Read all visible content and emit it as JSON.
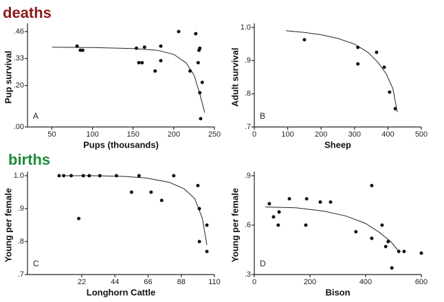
{
  "sections": [
    "deaths",
    "births"
  ],
  "chart_data": [
    {
      "type": "scatter",
      "panel_label": "A",
      "x_label": "Pups (thousands)",
      "y_label": "Pup survival",
      "x": [
        81,
        85,
        88,
        154,
        157,
        161,
        164,
        177,
        184,
        184,
        206,
        220,
        227,
        230,
        231,
        232,
        232,
        235,
        233
      ],
      "values": [
        0.39,
        0.37,
        0.37,
        0.38,
        0.31,
        0.31,
        0.385,
        0.27,
        0.32,
        0.39,
        0.46,
        0.27,
        0.45,
        0.31,
        0.37,
        0.38,
        0.165,
        0.215,
        0.04
      ],
      "curve": {
        "x": [
          50,
          100,
          150,
          180,
          200,
          215,
          225,
          232,
          238
        ],
        "values": [
          0.385,
          0.383,
          0.378,
          0.37,
          0.35,
          0.31,
          0.25,
          0.16,
          0.07
        ]
      },
      "xlim": [
        20,
        250
      ],
      "xticks": [
        50,
        100,
        150,
        200,
        250
      ],
      "ylim": [
        0,
        0.48
      ],
      "yticks": [
        {
          "value": 0,
          "label": ".00"
        },
        {
          "value": 0.2,
          "label": ".20"
        },
        {
          "value": 0.33,
          "label": ".33"
        },
        {
          "value": 0.46,
          "label": ".46"
        }
      ]
    },
    {
      "type": "scatter",
      "panel_label": "B",
      "x_label": "Sheep",
      "y_label": "Adult survival",
      "x": [
        150,
        310,
        310,
        366,
        389,
        405,
        422
      ],
      "values": [
        0.963,
        0.94,
        0.89,
        0.925,
        0.88,
        0.805,
        0.755
      ],
      "curve": {
        "x": [
          95,
          150,
          200,
          250,
          300,
          340,
          370,
          395,
          415,
          428
        ],
        "values": [
          0.99,
          0.985,
          0.978,
          0.967,
          0.95,
          0.925,
          0.895,
          0.86,
          0.815,
          0.745
        ]
      },
      "xlim": [
        0,
        500
      ],
      "xticks": [
        0,
        100,
        200,
        300,
        400,
        500
      ],
      "ylim": [
        0.7,
        1.0
      ],
      "yticks": [
        {
          "value": 0.7,
          "label": ".7"
        },
        {
          "value": 0.8,
          "label": ".8"
        },
        {
          "value": 0.9,
          "label": ".9"
        },
        {
          "value": 1,
          "label": "1.0"
        }
      ]
    },
    {
      "type": "scatter",
      "panel_label": "C",
      "x_label": "Longhorn Cattle",
      "y_label": "Young per female",
      "x": [
        7,
        10,
        15,
        20,
        23,
        27,
        34,
        45,
        55,
        60,
        68,
        83,
        75,
        99,
        100,
        100,
        105,
        105
      ],
      "values": [
        1.0,
        1.0,
        1.0,
        0.87,
        1.0,
        1.0,
        1.0,
        1.0,
        0.95,
        1.0,
        0.95,
        1.0,
        0.925,
        0.97,
        0.9,
        0.8,
        0.85,
        0.77
      ],
      "curve": {
        "x": [
          10,
          30,
          50,
          65,
          80,
          90,
          97,
          102,
          105
        ],
        "values": [
          1.0,
          1.0,
          0.998,
          0.993,
          0.98,
          0.96,
          0.93,
          0.87,
          0.79
        ]
      },
      "xlim": [
        -14,
        110
      ],
      "xticks": [
        22,
        44,
        66,
        88,
        110
      ],
      "ylim": [
        0.7,
        1.0
      ],
      "yticks": [
        {
          "value": 0.7,
          "label": ".7"
        },
        {
          "value": 0.8,
          "label": ".8"
        },
        {
          "value": 0.9,
          "label": ".9"
        },
        {
          "value": 1,
          "label": "1.0"
        }
      ]
    },
    {
      "type": "scatter",
      "panel_label": "D",
      "x_label": "Bison",
      "y_label": "Young per female",
      "x": [
        54,
        69,
        86,
        89,
        126,
        185,
        188,
        237,
        274,
        365,
        422,
        422,
        459,
        481,
        472,
        494,
        519,
        538,
        600
      ],
      "values": [
        0.73,
        0.65,
        0.6,
        0.68,
        0.76,
        0.6,
        0.76,
        0.74,
        0.74,
        0.56,
        0.52,
        0.84,
        0.6,
        0.5,
        0.47,
        0.34,
        0.44,
        0.44,
        0.43
      ],
      "curve": {
        "x": [
          40,
          150,
          250,
          330,
          400,
          450,
          490,
          520
        ],
        "values": [
          0.71,
          0.705,
          0.685,
          0.655,
          0.61,
          0.555,
          0.5,
          0.44
        ]
      },
      "xlim": [
        0,
        600
      ],
      "xticks": [
        0,
        200,
        400,
        600
      ],
      "ylim": [
        0.3,
        0.9
      ],
      "yticks": [
        {
          "value": 0.3,
          "label": ".3"
        },
        {
          "value": 0.6,
          "label": ".6"
        },
        {
          "value": 0.9,
          "label": ".9"
        }
      ]
    }
  ]
}
